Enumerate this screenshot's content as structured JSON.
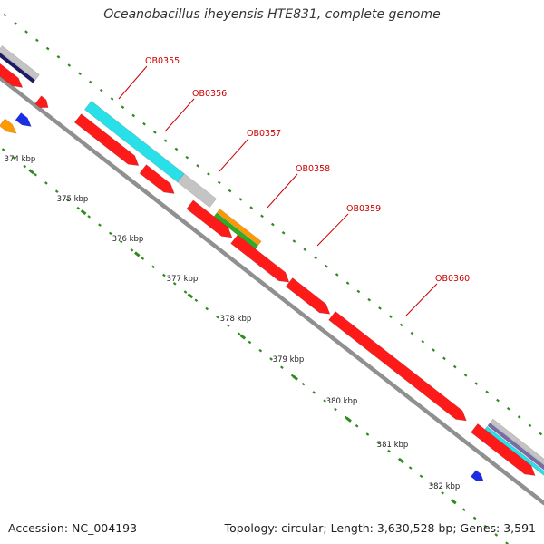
{
  "title": "Oceanobacillus iheyensis HTE831, complete genome",
  "footer": {
    "accession": "Accession: NC_004193",
    "summary": "Topology: circular; Length: 3,630,528 bp; Genes: 3,591"
  },
  "colors": {
    "backbone": "#909090",
    "tick": "#2e8b1e",
    "label": "#cc0000",
    "cds": "#ff1a1a",
    "cyan": "#2ae0e8",
    "gray": "#c4c4c4",
    "orange": "#ff9900",
    "green": "#33aa22",
    "navy": "#1a1a66",
    "blue": "#1a2ee6",
    "purple": "#7a6aa8"
  },
  "ticks": [
    {
      "label": "374 kbp"
    },
    {
      "label": "375 kbp"
    },
    {
      "label": "376 kbp"
    },
    {
      "label": "377 kbp"
    },
    {
      "label": "378 kbp"
    },
    {
      "label": "379 kbp"
    },
    {
      "label": "380 kbp"
    },
    {
      "label": "381 kbp"
    },
    {
      "label": "382 kbp"
    }
  ],
  "genes": [
    {
      "name": "OB0355"
    },
    {
      "name": "OB0356"
    },
    {
      "name": "OB0357"
    },
    {
      "name": "OB0358"
    },
    {
      "name": "OB0359"
    },
    {
      "name": "OB0360"
    }
  ]
}
